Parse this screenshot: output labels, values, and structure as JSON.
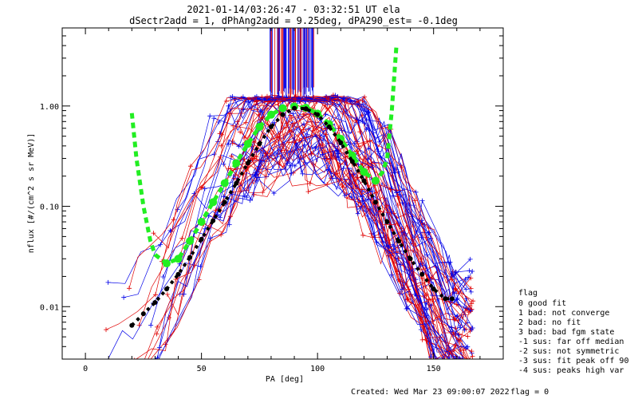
{
  "chart_data": {
    "type": "line",
    "title_line1": "2021-01-14/03:26:47 - 03:32:51 UT ela",
    "title_line2": "dSectr2add = 1, dPhAng2add = 9.25deg, dPA290_est=  -0.1deg",
    "xlabel": "PA [deg]",
    "ylabel": "nflux [#/(cm^2 s sr MeV)]",
    "xlim": [
      -10,
      180
    ],
    "ylim": [
      0.003,
      6.0
    ],
    "yscale": "log",
    "x_ticks": [
      0,
      50,
      100,
      150
    ],
    "x_tick_labels": [
      "0",
      "50",
      "100",
      "150"
    ],
    "y_ticks": [
      0.01,
      0.1,
      1.0
    ],
    "y_tick_labels": [
      "0.01",
      "0.10",
      "1.00"
    ],
    "legend_title": "flag",
    "legend_entries": [
      " 0 good fit",
      " 1 bad: not converge",
      " 2 bad: no fit",
      " 3 bad: bad fgm state",
      "-1 sus: far off median",
      "-2 sus: not symmetric",
      "-3 sus: fit peak off 90",
      "-4 sus: peaks high var"
    ],
    "footer_created": "Created: Wed Mar 23 09:00:07 2022",
    "footer_flag": "flag = 0",
    "colors": {
      "series_a": "#e00000",
      "series_b": "#0000e8",
      "median": "#000000",
      "fit": "#22ee22"
    },
    "series": [
      {
        "role": "median",
        "x": [
          20,
          25,
          30,
          35,
          40,
          45,
          50,
          55,
          60,
          65,
          70,
          75,
          80,
          85,
          90,
          95,
          100,
          105,
          110,
          115,
          120,
          125,
          130,
          135,
          140,
          145,
          150,
          155,
          158
        ],
        "y": [
          0.0065,
          0.0085,
          0.011,
          0.015,
          0.021,
          0.031,
          0.047,
          0.072,
          0.11,
          0.17,
          0.27,
          0.42,
          0.62,
          0.82,
          0.95,
          0.94,
          0.82,
          0.62,
          0.43,
          0.28,
          0.18,
          0.11,
          0.07,
          0.045,
          0.03,
          0.021,
          0.015,
          0.012,
          0.012
        ]
      },
      {
        "role": "fit",
        "x": [
          20,
          22,
          25,
          28,
          30,
          35,
          40,
          45,
          50,
          55,
          60,
          65,
          70,
          75,
          80,
          85,
          90,
          95,
          100,
          105,
          110,
          115,
          120,
          125,
          128,
          130,
          132,
          134
        ],
        "y": [
          0.85,
          0.3,
          0.1,
          0.045,
          0.033,
          0.027,
          0.03,
          0.045,
          0.07,
          0.11,
          0.17,
          0.27,
          0.42,
          0.62,
          0.82,
          0.95,
          0.99,
          0.96,
          0.84,
          0.66,
          0.47,
          0.32,
          0.22,
          0.18,
          0.22,
          0.3,
          0.9,
          4.0
        ]
      }
    ]
  }
}
